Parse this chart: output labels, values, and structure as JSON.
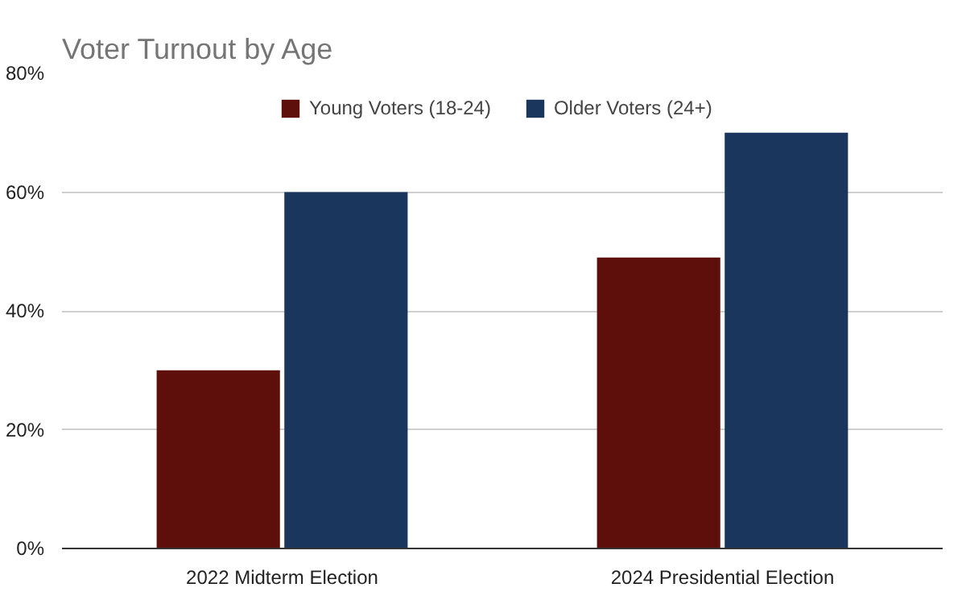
{
  "chart_data": {
    "type": "bar",
    "title": "Voter Turnout by Age",
    "categories": [
      "2022 Midterm Election",
      "2024 Presidential Election"
    ],
    "series": [
      {
        "name": "Young Voters (18-24)",
        "color": "#5e0f0b",
        "values": [
          30,
          49
        ]
      },
      {
        "name": "Older Voters (24+)",
        "color": "#1b365d",
        "values": [
          60,
          70
        ]
      }
    ],
    "ylim": [
      0,
      80
    ],
    "yticks": [
      {
        "value": 0,
        "label": "0%"
      },
      {
        "value": 20,
        "label": "20%"
      },
      {
        "value": 40,
        "label": "40%"
      },
      {
        "value": 60,
        "label": "60%"
      },
      {
        "value": 80,
        "label": "80%"
      }
    ],
    "grid": "y",
    "legend": "top"
  }
}
